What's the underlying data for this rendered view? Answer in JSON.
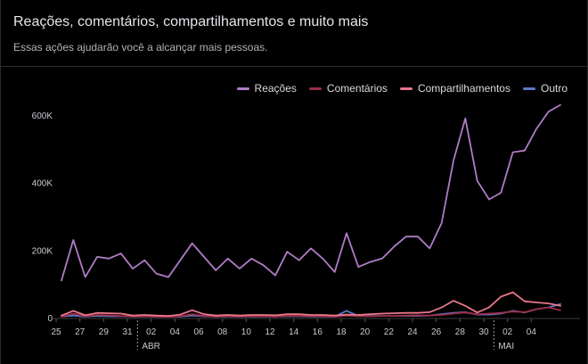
{
  "header": {
    "title": "Reações, comentários, compartilhamentos e muito mais",
    "subtitle": "Essas ações ajudarão você a alcançar mais pessoas."
  },
  "chart_data": {
    "type": "line",
    "ylim": [
      0,
      650000
    ],
    "y_ticks": [
      0,
      200000,
      400000,
      600000
    ],
    "y_tick_labels": [
      "0",
      "200K",
      "400K",
      "600K"
    ],
    "x_tick_labels": [
      "25",
      "27",
      "29",
      "31",
      "02",
      "04",
      "06",
      "08",
      "10",
      "12",
      "14",
      "16",
      "18",
      "20",
      "22",
      "24",
      "26",
      "28",
      "30",
      "02",
      "04"
    ],
    "month_labels": [
      {
        "label": "ABR",
        "day_index": 7
      },
      {
        "label": "MAI",
        "day_index": 37
      }
    ],
    "legend_position": "top-right",
    "grid": false,
    "x": [
      "25/03",
      "26/03",
      "27/03",
      "28/03",
      "29/03",
      "30/03",
      "31/03",
      "01/04",
      "02/04",
      "03/04",
      "04/04",
      "05/04",
      "06/04",
      "07/04",
      "08/04",
      "09/04",
      "10/04",
      "11/04",
      "12/04",
      "13/04",
      "14/04",
      "15/04",
      "16/04",
      "17/04",
      "18/04",
      "19/04",
      "20/04",
      "21/04",
      "22/04",
      "23/04",
      "24/04",
      "25/04",
      "26/04",
      "27/04",
      "28/04",
      "29/04",
      "30/04",
      "01/05",
      "02/05",
      "03/05",
      "04/05",
      "05/05",
      "06/05"
    ],
    "series": [
      {
        "name": "Reações",
        "color": "#b07cc6",
        "values": [
          110000,
          230000,
          120000,
          180000,
          175000,
          190000,
          145000,
          170000,
          130000,
          120000,
          170000,
          220000,
          180000,
          140000,
          175000,
          145000,
          175000,
          155000,
          125000,
          195000,
          170000,
          205000,
          175000,
          135000,
          250000,
          150000,
          165000,
          175000,
          210000,
          240000,
          240000,
          205000,
          280000,
          465000,
          590000,
          405000,
          350000,
          370000,
          490000,
          495000,
          560000,
          610000,
          630000
        ]
      },
      {
        "name": "Comentários",
        "color": "#9b2d48",
        "values": [
          3000,
          12000,
          4000,
          8000,
          7000,
          5000,
          3000,
          4000,
          3000,
          2000,
          4000,
          10000,
          5000,
          3000,
          4000,
          3000,
          4000,
          4000,
          3000,
          5000,
          5000,
          4000,
          4000,
          3000,
          6000,
          4000,
          4000,
          5000,
          5000,
          6000,
          7000,
          6000,
          8000,
          12000,
          15000,
          10000,
          12000,
          14000,
          18000,
          16000,
          25000,
          30000,
          22000
        ]
      },
      {
        "name": "Compartilhamentos",
        "color": "#e8788a",
        "values": [
          6000,
          20000,
          7000,
          14000,
          13000,
          12000,
          6000,
          8000,
          6000,
          5000,
          9000,
          22000,
          10000,
          6000,
          8000,
          6000,
          8000,
          8000,
          7000,
          10000,
          10000,
          8000,
          8000,
          6000,
          9000,
          8000,
          10000,
          12000,
          13000,
          14000,
          14000,
          16000,
          30000,
          50000,
          35000,
          15000,
          30000,
          62000,
          75000,
          48000,
          45000,
          42000,
          35000
        ]
      },
      {
        "name": "Outro",
        "color": "#5a78c8",
        "values": [
          3000,
          6000,
          3000,
          5000,
          4000,
          4000,
          3000,
          3000,
          3000,
          3000,
          3000,
          6000,
          4000,
          3000,
          3000,
          3000,
          3000,
          3000,
          3000,
          4000,
          4000,
          3000,
          3000,
          3000,
          20000,
          5000,
          5000,
          5000,
          5000,
          5000,
          5000,
          6000,
          10000,
          14000,
          16000,
          9000,
          9000,
          12000,
          20000,
          15000,
          25000,
          30000,
          40000
        ]
      }
    ]
  }
}
